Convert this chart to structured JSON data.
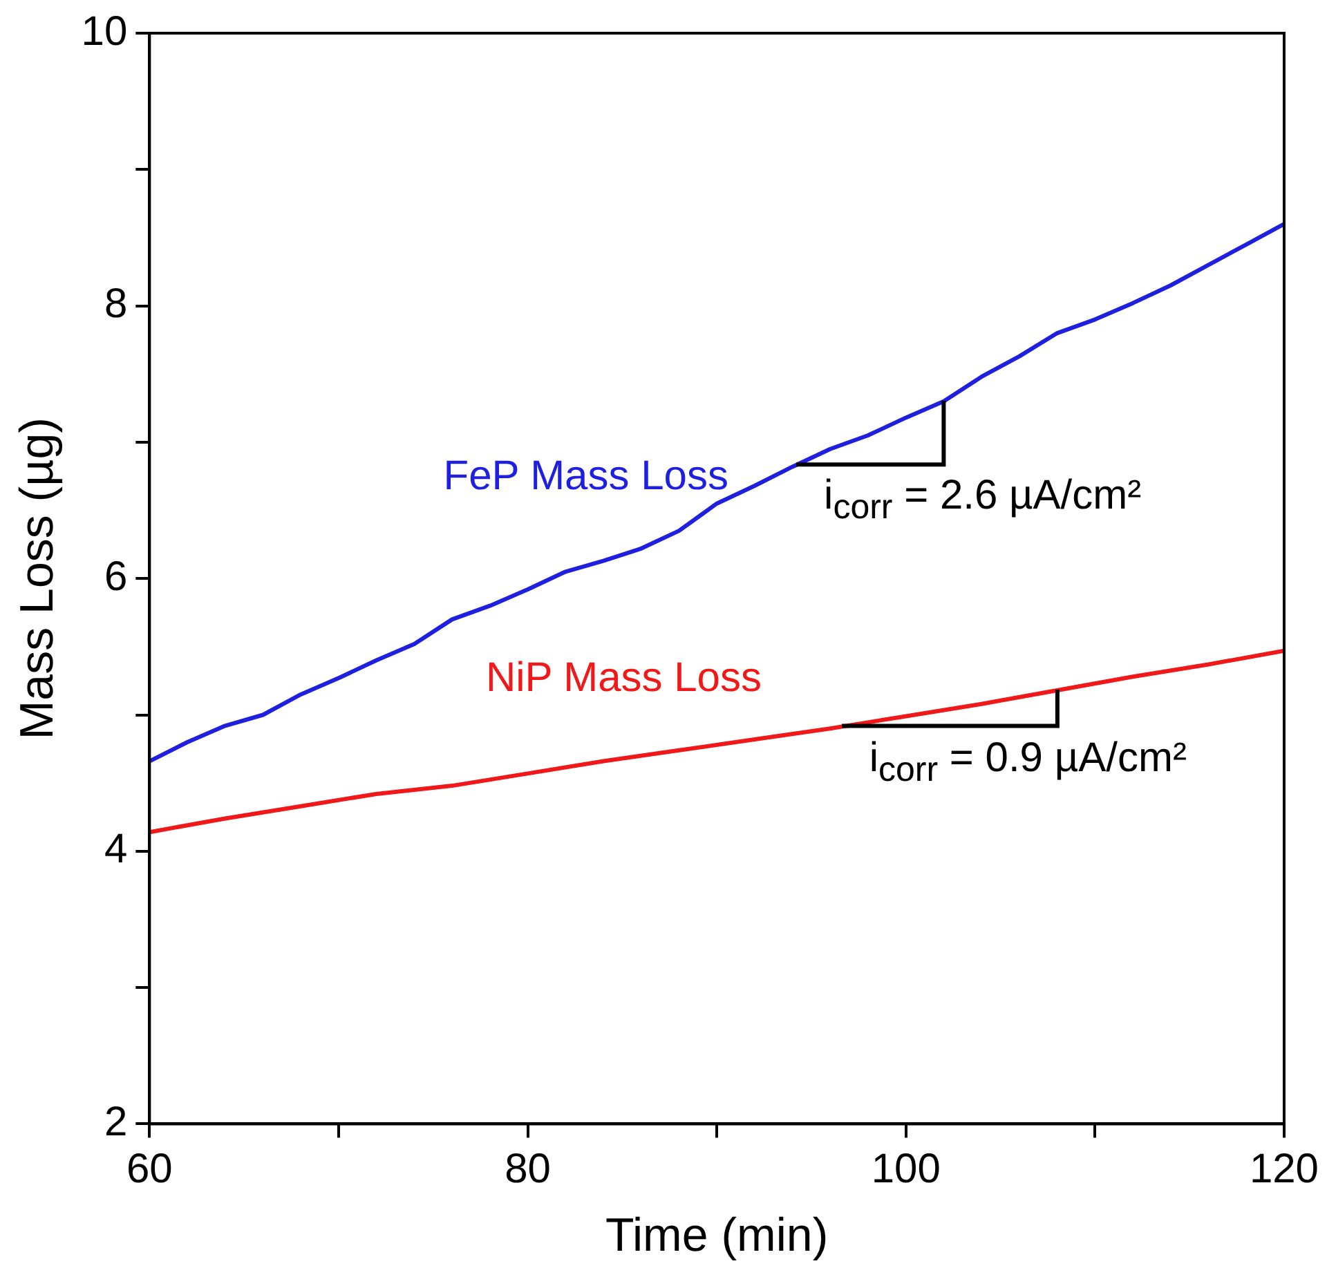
{
  "chart_data": {
    "type": "line",
    "xlabel": "Time (min)",
    "ylabel": "Mass Loss (µg)",
    "xlim": [
      60,
      120
    ],
    "xticks": [
      60,
      {
        "value": 70,
        "label": null
      },
      80,
      {
        "value": 90,
        "label": null
      },
      100,
      {
        "value": 110,
        "label": null
      },
      120
    ],
    "ylim": [
      2,
      10
    ],
    "yticks": [
      2,
      {
        "value": 3,
        "label": null
      },
      4,
      {
        "value": 5,
        "label": null
      },
      6,
      {
        "value": 7,
        "label": null
      },
      8,
      {
        "value": 9,
        "label": null
      },
      10
    ],
    "grid": false,
    "marker": "none",
    "line_style": "solid",
    "series": [
      {
        "name": "FeP Mass Loss",
        "color": "#1f1fe0",
        "x": [
          60,
          62,
          64,
          66,
          68,
          70,
          72,
          74,
          76,
          78,
          80,
          82,
          84,
          86,
          88,
          90,
          92,
          94,
          96,
          98,
          100,
          102,
          104,
          106,
          108,
          110,
          112,
          114,
          116,
          118,
          120
        ],
        "values": [
          4.66,
          4.8,
          4.92,
          5.0,
          5.15,
          5.27,
          5.4,
          5.52,
          5.7,
          5.8,
          5.92,
          6.05,
          6.13,
          6.22,
          6.35,
          6.55,
          6.68,
          6.82,
          6.95,
          7.05,
          7.18,
          7.3,
          7.48,
          7.63,
          7.8,
          7.9,
          8.02,
          8.15,
          8.3,
          8.45,
          8.6
        ]
      },
      {
        "name": "NiP Mass Loss",
        "color": "#f01818",
        "x": [
          60,
          64,
          68,
          72,
          76,
          80,
          84,
          88,
          92,
          96,
          100,
          104,
          108,
          112,
          116,
          120
        ],
        "values": [
          4.14,
          4.24,
          4.33,
          4.42,
          4.48,
          4.57,
          4.66,
          4.74,
          4.82,
          4.9,
          4.99,
          5.08,
          5.18,
          5.28,
          5.37,
          5.47
        ]
      }
    ],
    "annotations": [
      {
        "text": "i$_{corr}$ = 2.6 µA/cm²",
        "x": 102,
        "y": 7.3
      },
      {
        "text": "i$_{corr}$ = 0.9 µA/cm²",
        "x": 108,
        "y": 5.18
      }
    ]
  }
}
